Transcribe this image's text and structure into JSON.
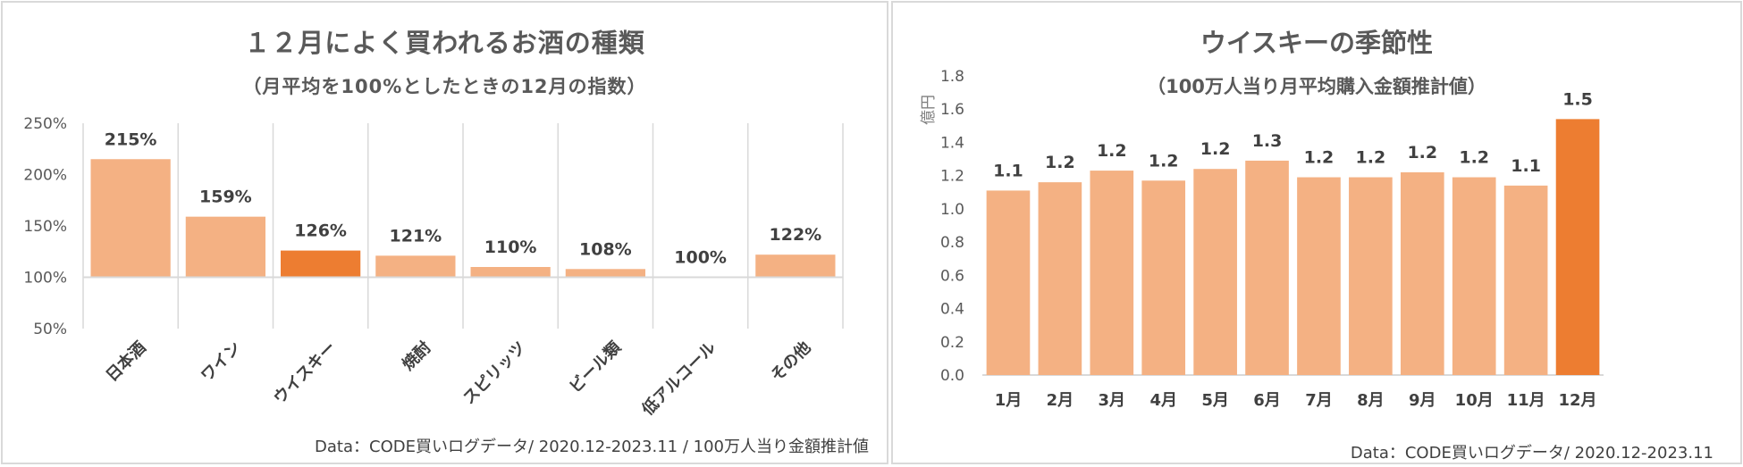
{
  "colors": {
    "bar": "#f4b183",
    "highlight": "#ed7d31",
    "grid": "#d9d9d9",
    "text": "#595959"
  },
  "chart_data": [
    {
      "type": "bar",
      "title": "１２月によく買われるお酒の種類",
      "subtitle": "（月平均を100%としたときの12月の指数）",
      "categories": [
        "日本酒",
        "ワイン",
        "ウイスキー",
        "焼酎",
        "スピリッツ",
        "ビール類",
        "低アルコール",
        "その他"
      ],
      "values": [
        215,
        159,
        126,
        121,
        110,
        108,
        100,
        122
      ],
      "data_labels": [
        "215%",
        "159%",
        "126%",
        "121%",
        "110%",
        "108%",
        "100%",
        "122%"
      ],
      "highlight_index": 2,
      "baseline": 100,
      "ylim": [
        50,
        250
      ],
      "yticks": [
        "50%",
        "100%",
        "150%",
        "200%",
        "250%"
      ],
      "ytick_values": [
        50,
        100,
        150,
        200,
        250
      ],
      "source": "Data：CODE買いログデータ/  2020.12-2023.11 / 100万人当り金額推計値"
    },
    {
      "type": "bar",
      "title": "ウイスキーの季節性",
      "subtitle": "（100万人当り月平均購入金額推計値）",
      "ylabel": "億円",
      "categories": [
        "1月",
        "2月",
        "3月",
        "4月",
        "5月",
        "6月",
        "7月",
        "8月",
        "9月",
        "10月",
        "11月",
        "12月"
      ],
      "values": [
        1.11,
        1.16,
        1.23,
        1.17,
        1.24,
        1.29,
        1.19,
        1.19,
        1.22,
        1.19,
        1.14,
        1.54
      ],
      "data_labels": [
        "1.1",
        "1.2",
        "1.2",
        "1.2",
        "1.2",
        "1.3",
        "1.2",
        "1.2",
        "1.2",
        "1.2",
        "1.1",
        "1.5"
      ],
      "highlight_index": 11,
      "ylim": [
        0,
        1.8
      ],
      "yticks": [
        "0.0",
        "0.2",
        "0.4",
        "0.6",
        "0.8",
        "1.0",
        "1.2",
        "1.4",
        "1.6",
        "1.8"
      ],
      "ytick_values": [
        0,
        0.2,
        0.4,
        0.6,
        0.8,
        1.0,
        1.2,
        1.4,
        1.6,
        1.8
      ],
      "source": "Data：CODE買いログデータ/ 2020.12-2023.11"
    }
  ]
}
